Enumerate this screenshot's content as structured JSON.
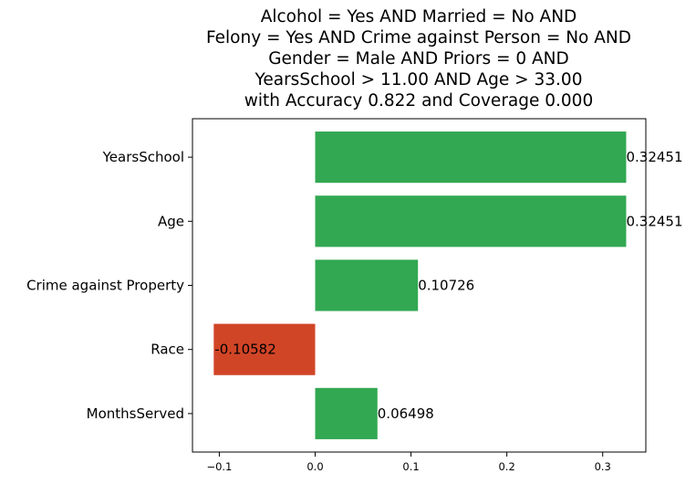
{
  "chart_data": {
    "type": "bar",
    "orientation": "horizontal",
    "title_lines": [
      "Alcohol = Yes AND Married = No AND",
      "Felony = Yes AND Crime against Person = No AND",
      "Gender = Male AND Priors = 0 AND",
      "YearsSchool > 11.00 AND Age > 33.00",
      "with Accuracy 0.822 and Coverage 0.000"
    ],
    "categories": [
      "YearsSchool",
      "Age",
      "Crime against Property",
      "Race",
      "MonthsServed"
    ],
    "values": [
      0.32451,
      0.32451,
      0.10726,
      -0.10582,
      0.06498
    ],
    "value_labels": [
      "0.32451",
      "0.32451",
      "0.10726",
      "-0.10582",
      "0.06498"
    ],
    "xlim": [
      -0.128,
      0.345
    ],
    "xticks": [
      -0.1,
      0.0,
      0.1,
      0.2,
      0.3
    ],
    "xtick_labels": [
      "−0.1",
      "0.0",
      "0.1",
      "0.2",
      "0.3"
    ],
    "grid": false,
    "colors": {
      "positive": "#32a852",
      "negative": "#d14527"
    }
  }
}
